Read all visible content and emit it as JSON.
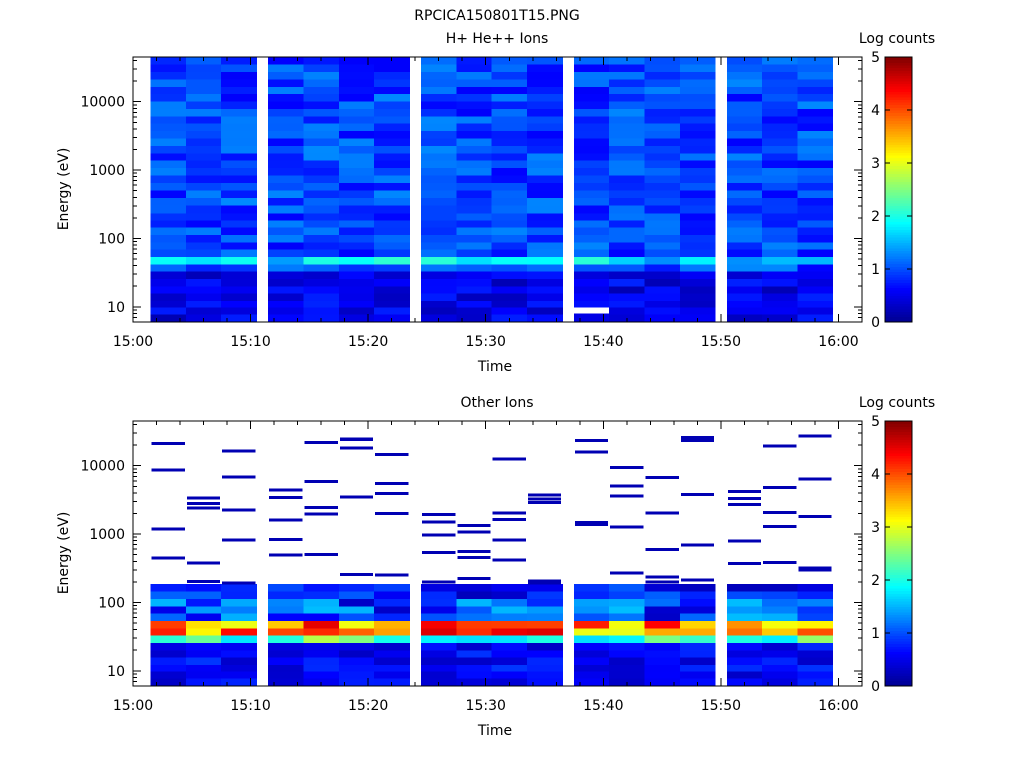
{
  "figure_title": "RPCICA150801T15.PNG",
  "colormap": [
    "#00008f",
    "#0000ff",
    "#0080ff",
    "#00ffff",
    "#80ff80",
    "#ffff00",
    "#ff8000",
    "#ff0000",
    "#800000"
  ],
  "chart_data": [
    {
      "type": "heatmap",
      "title": "H+ He++ Ions",
      "xlabel": "Time",
      "ylabel": "Energy (eV)",
      "colorbar_label": "Log counts",
      "xlim": [
        "15:00",
        "16:02"
      ],
      "x_ticks": [
        "15:00",
        "15:10",
        "15:20",
        "15:30",
        "15:40",
        "15:50",
        "16:00"
      ],
      "ylim": [
        6,
        45000
      ],
      "y_scale": "log",
      "y_ticks": [
        10,
        100,
        1000,
        10000
      ],
      "y_tick_labels": [
        "10",
        "100",
        "1000",
        "10000"
      ],
      "clim": [
        0,
        5
      ],
      "colorbar_ticks": [
        "0",
        "1",
        "2",
        "3",
        "4",
        "5"
      ],
      "time_bins": [
        "15:03",
        "15:06",
        "15:09",
        "15:13",
        "15:16",
        "15:19",
        "15:22",
        "15:26",
        "15:29",
        "15:32",
        "15:35",
        "15:39",
        "15:42",
        "15:45",
        "15:48",
        "15:52",
        "15:55",
        "15:58"
      ],
      "energy_bins_eV": [
        7,
        9,
        11,
        14,
        18,
        23,
        30,
        38,
        48,
        62,
        80,
        100,
        130,
        165,
        210,
        270,
        350,
        450,
        580,
        750,
        960,
        1230,
        1580,
        2030,
        2600,
        3340,
        4290,
        5500,
        7060,
        9060,
        11600,
        14900,
        19100,
        24500,
        31500,
        40400
      ],
      "background_level_range": [
        0.6,
        1.3
      ],
      "features": [
        {
          "energy_range_eV": [
            40,
            60
          ],
          "level_range": [
            1.3,
            2.1
          ],
          "note": "ion band near 50 eV"
        },
        {
          "energy_range_eV": [
            6,
            30
          ],
          "level_range": [
            0.2,
            0.8
          ]
        }
      ],
      "empty_cells": [
        {
          "time": "15:39",
          "energy_eV": 9
        }
      ]
    },
    {
      "type": "heatmap",
      "title": "Other Ions",
      "xlabel": "Time",
      "ylabel": "Energy (eV)",
      "colorbar_label": "Log counts",
      "xlim": [
        "15:00",
        "16:02"
      ],
      "x_ticks": [
        "15:00",
        "15:10",
        "15:20",
        "15:30",
        "15:40",
        "15:50",
        "16:00"
      ],
      "ylim": [
        6,
        45000
      ],
      "y_scale": "log",
      "y_ticks": [
        10,
        100,
        1000,
        10000
      ],
      "y_tick_labels": [
        "10",
        "100",
        "1000",
        "10000"
      ],
      "clim": [
        0,
        5
      ],
      "colorbar_ticks": [
        "0",
        "1",
        "2",
        "3",
        "4",
        "5"
      ],
      "time_bins": [
        "15:03",
        "15:06",
        "15:09",
        "15:13",
        "15:16",
        "15:19",
        "15:22",
        "15:26",
        "15:29",
        "15:32",
        "15:35",
        "15:39",
        "15:42",
        "15:45",
        "15:48",
        "15:52",
        "15:55",
        "15:58"
      ],
      "energy_bins_eV": [
        7,
        9,
        11,
        14,
        18,
        23,
        30,
        38,
        48,
        62,
        80,
        100,
        130,
        165,
        210,
        270,
        350,
        450,
        580,
        750,
        960,
        1230,
        1580,
        2030,
        2600,
        3340,
        4290,
        5500,
        7060,
        9060,
        11600,
        14900,
        19100,
        24500,
        31500,
        40400
      ],
      "continuous_region_energy_eV": [
        6,
        170
      ],
      "features": [
        {
          "energy_range_eV": [
            38,
            60
          ],
          "level_range": [
            3.0,
            4.6
          ],
          "note": "intense band near 40-55 eV"
        },
        {
          "energy_range_eV": [
            25,
            38
          ],
          "level_range": [
            1.6,
            2.8
          ]
        },
        {
          "energy_range_eV": [
            60,
            110
          ],
          "level_range": [
            0.3,
            1.6
          ]
        },
        {
          "energy_range_eV": [
            6,
            25
          ],
          "level_range": [
            0.3,
            0.9
          ]
        }
      ],
      "sparse_detection_level": 0.2,
      "sparse_detections_per_time_bin": 5
    }
  ]
}
